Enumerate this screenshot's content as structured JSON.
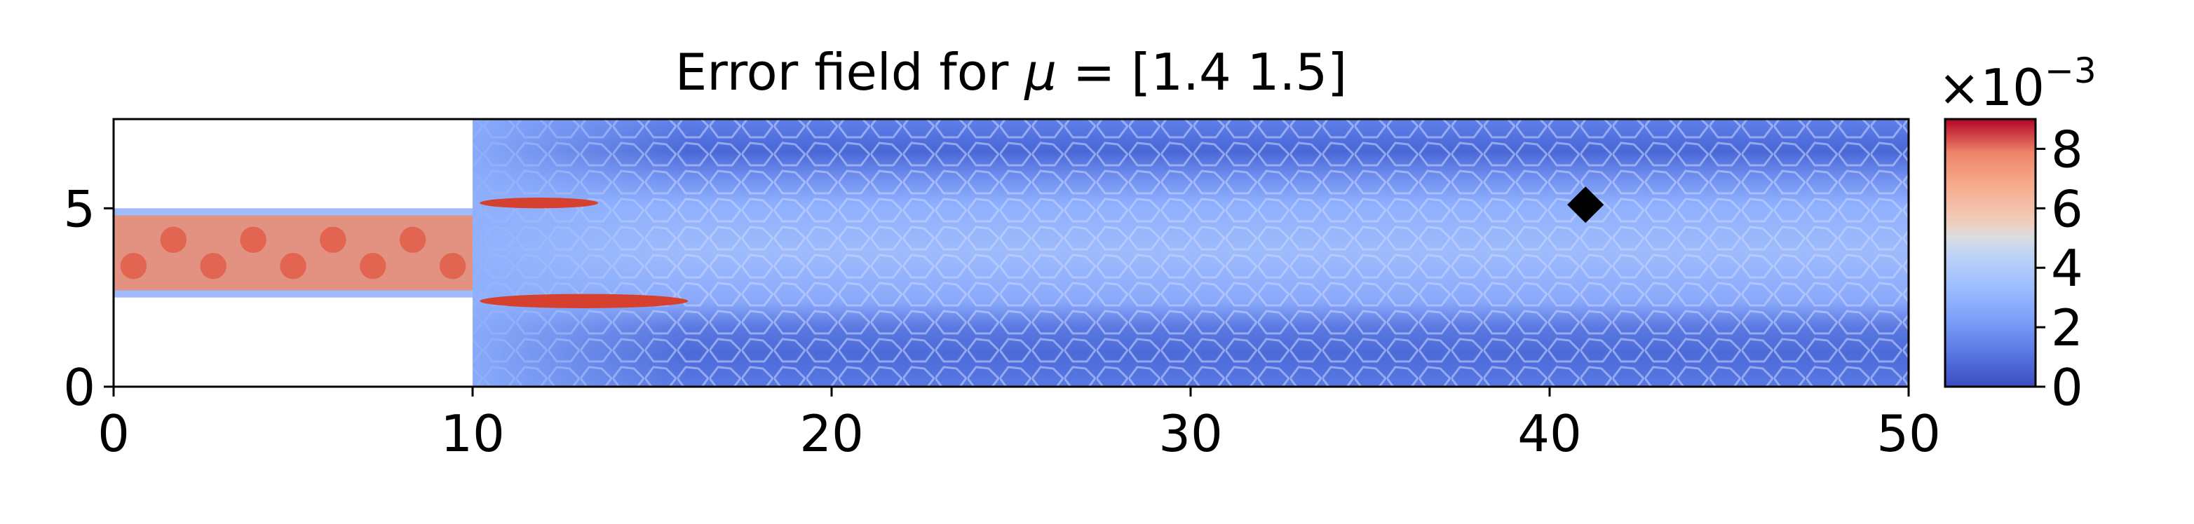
{
  "chart_data": {
    "type": "heatmap",
    "title": "Error field for μ = [1.4 1.5]",
    "title_prefix": "Error field for ",
    "title_symbol": "μ",
    "title_suffix": " = [1.4 1.5]",
    "xlabel": "",
    "ylabel": "",
    "xlim": [
      0,
      50
    ],
    "ylim": [
      0,
      7.5
    ],
    "xticks": [
      0,
      10,
      20,
      30,
      40,
      50
    ],
    "yticks": [
      0,
      5
    ],
    "colormap": "coolwarm",
    "colorbar": {
      "range": [
        0,
        9
      ],
      "ticks": [
        0,
        2,
        4,
        6,
        8
      ],
      "scale_label_base": "×10",
      "scale_label_exponent": "−3"
    },
    "domain": {
      "inlet_channel": {
        "x": [
          0,
          10
        ],
        "y": [
          2.5,
          5.0
        ]
      },
      "main_channel": {
        "x": [
          10,
          50
        ],
        "y": [
          0,
          7.5
        ]
      }
    },
    "hotspots": [
      {
        "x": [
          0,
          10
        ],
        "y": [
          2.7,
          4.8
        ],
        "level": 6.5
      },
      {
        "x": [
          10.2,
          13.5
        ],
        "y": [
          5.0,
          5.3
        ],
        "level": 8.5
      },
      {
        "x": [
          10.2,
          16.0
        ],
        "y": [
          2.2,
          2.6
        ],
        "level": 8.5
      }
    ],
    "marker": {
      "shape": "diamond",
      "x": 41.0,
      "y": 5.1,
      "color": "#000000"
    },
    "colors": {
      "background_low": "#4b6ad9",
      "channel_band": "#8fb0fd",
      "hot": "#e0523d",
      "warm": "#f4a583"
    }
  }
}
